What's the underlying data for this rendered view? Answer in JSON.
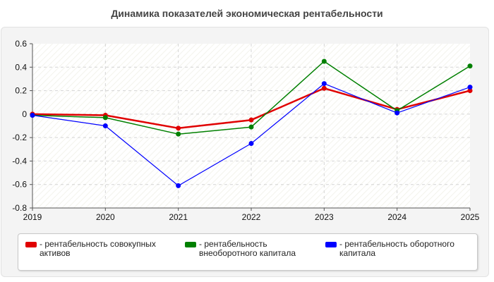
{
  "chart_data": {
    "type": "line",
    "title": "Динамика показателей экономическая рентабельности",
    "xlabel": "",
    "ylabel": "",
    "categories": [
      "2019",
      "2020",
      "2021",
      "2022",
      "2023",
      "2024",
      "2025"
    ],
    "ylim": [
      -0.8,
      0.6
    ],
    "yticks": [
      "0.6",
      "0.4",
      "0.2",
      "0",
      "-0.2",
      "-0.4",
      "-0.6",
      "-0.8"
    ],
    "grid": true,
    "legend_position": "bottom",
    "series": [
      {
        "name": "рентабельность совокупных активов",
        "color": "#e00000",
        "values": [
          0.0,
          -0.01,
          -0.12,
          -0.05,
          0.22,
          0.04,
          0.2
        ]
      },
      {
        "name": "рентабельность внеоборотного капитала",
        "color": "#008000",
        "values": [
          -0.01,
          -0.03,
          -0.17,
          -0.11,
          0.45,
          0.03,
          0.41
        ]
      },
      {
        "name": "рентабельность оборотного капитала",
        "color": "#0000ff",
        "values": [
          -0.01,
          -0.1,
          -0.61,
          -0.25,
          0.26,
          0.01,
          0.23
        ]
      }
    ]
  }
}
